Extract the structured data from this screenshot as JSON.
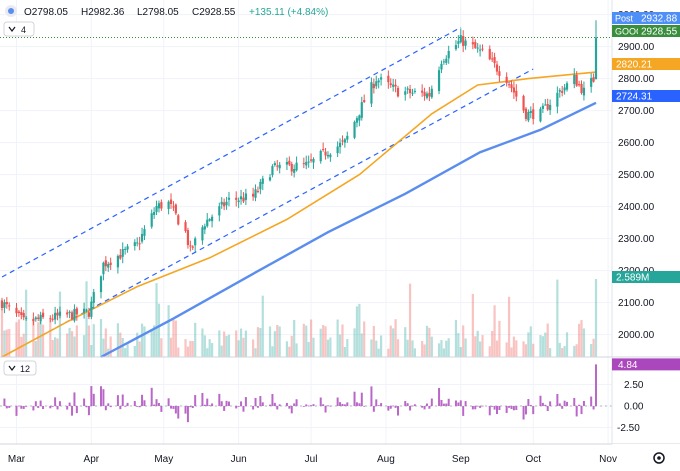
{
  "header": {
    "open": "O2798.05",
    "high": "H2982.36",
    "low": "L2798.05",
    "close": "C2928.55",
    "change": "+135.11 (+4.84%)",
    "indicator_count": "4",
    "sub_indicator_count": "12"
  },
  "price_axis": {
    "ticks": [
      "3000.00",
      "2900.00",
      "2800.00",
      "2700.00",
      "2600.00",
      "2500.00",
      "2400.00",
      "2300.00",
      "2200.00",
      "2100.00",
      "2000.00"
    ],
    "labels": [
      {
        "name": "Post",
        "value": "2932.88",
        "color": "#4e8ef7"
      },
      {
        "name": "GOOG",
        "value": "2928.55",
        "color": "#388e3c"
      },
      {
        "name": "",
        "value": "2820.21",
        "color": "#f5a623"
      },
      {
        "name": "",
        "value": "2724.31",
        "color": "#2962ff"
      },
      {
        "name": "",
        "value": "2.589M",
        "color": "#26a69a"
      }
    ]
  },
  "sub_axis": {
    "ticks": [
      "2.50",
      "0.00",
      "-2.50"
    ],
    "label": {
      "value": "4.84",
      "color": "#ab47bc"
    }
  },
  "time_axis": {
    "ticks": [
      "Mar",
      "Apr",
      "May",
      "Jun",
      "Jul",
      "Aug",
      "Sep",
      "Oct",
      "Nov"
    ]
  },
  "colors": {
    "up": "#26a69a",
    "down": "#ef5350",
    "ma_fast": "#f5a623",
    "ma_slow": "#5b8def",
    "channel": "#2962ff",
    "pct": "#ba68c8"
  },
  "chart_data": {
    "type": "candlestick",
    "ylim": [
      1930,
      3030
    ],
    "anchors": [
      {
        "date": "2021-02-23",
        "close": 2100
      },
      {
        "date": "2021-03-04",
        "close": 2040
      },
      {
        "date": "2021-03-22",
        "close": 2060
      },
      {
        "date": "2021-03-31",
        "close": 2070
      },
      {
        "date": "2021-04-06",
        "close": 2220
      },
      {
        "date": "2021-04-20",
        "close": 2280
      },
      {
        "date": "2021-04-28",
        "close": 2400
      },
      {
        "date": "2021-05-03",
        "close": 2410
      },
      {
        "date": "2021-05-10",
        "close": 2320
      },
      {
        "date": "2021-05-12",
        "close": 2260
      },
      {
        "date": "2021-05-18",
        "close": 2350
      },
      {
        "date": "2021-05-28",
        "close": 2420
      },
      {
        "date": "2021-06-07",
        "close": 2430
      },
      {
        "date": "2021-06-15",
        "close": 2520
      },
      {
        "date": "2021-06-30",
        "close": 2530
      },
      {
        "date": "2021-07-07",
        "close": 2570
      },
      {
        "date": "2021-07-15",
        "close": 2600
      },
      {
        "date": "2021-07-23",
        "close": 2730
      },
      {
        "date": "2021-07-28",
        "close": 2800
      },
      {
        "date": "2021-08-06",
        "close": 2760
      },
      {
        "date": "2021-08-19",
        "close": 2750
      },
      {
        "date": "2021-08-24",
        "close": 2860
      },
      {
        "date": "2021-09-01",
        "close": 2920
      },
      {
        "date": "2021-09-10",
        "close": 2880
      },
      {
        "date": "2021-09-20",
        "close": 2800
      },
      {
        "date": "2021-09-28",
        "close": 2690
      },
      {
        "date": "2021-10-04",
        "close": 2690
      },
      {
        "date": "2021-10-12",
        "close": 2760
      },
      {
        "date": "2021-10-18",
        "close": 2800
      },
      {
        "date": "2021-10-22",
        "close": 2760
      },
      {
        "date": "2021-10-26",
        "close": 2798
      },
      {
        "date": "2021-10-27",
        "close": 2928.55
      }
    ],
    "ma_fast": [
      {
        "date": "2021-02-23",
        "value": 1930
      },
      {
        "date": "2021-03-22",
        "value": 2040
      },
      {
        "date": "2021-04-20",
        "value": 2150
      },
      {
        "date": "2021-05-20",
        "value": 2240
      },
      {
        "date": "2021-06-21",
        "value": 2360
      },
      {
        "date": "2021-07-21",
        "value": 2500
      },
      {
        "date": "2021-08-20",
        "value": 2690
      },
      {
        "date": "2021-09-08",
        "value": 2780
      },
      {
        "date": "2021-09-29",
        "value": 2800
      },
      {
        "date": "2021-10-27",
        "value": 2820.21
      }
    ],
    "ma_slow": [
      {
        "date": "2021-04-05",
        "value": 1930
      },
      {
        "date": "2021-05-05",
        "value": 2050
      },
      {
        "date": "2021-06-07",
        "value": 2190
      },
      {
        "date": "2021-07-08",
        "value": 2320
      },
      {
        "date": "2021-08-09",
        "value": 2440
      },
      {
        "date": "2021-09-09",
        "value": 2570
      },
      {
        "date": "2021-10-04",
        "value": 2640
      },
      {
        "date": "2021-10-27",
        "value": 2724.31
      }
    ],
    "channel_upper": [
      {
        "date": "2021-02-23",
        "value": 2180
      },
      {
        "date": "2021-09-01",
        "value": 2960
      }
    ],
    "channel_lower": [
      {
        "date": "2021-02-23",
        "value": 1930
      },
      {
        "date": "2021-10-01",
        "value": 2830
      }
    ],
    "volume_last": "2.589M",
    "pct_change_last": 4.84
  }
}
